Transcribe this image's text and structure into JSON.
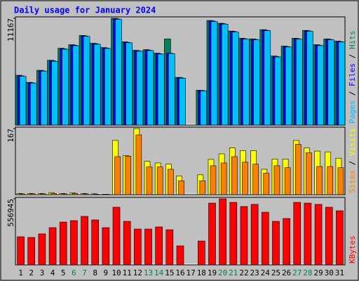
{
  "chart_data": {
    "type": "bar",
    "title": "Daily usage for January 2024",
    "title_color": "#0000ff",
    "categories": [
      "1",
      "2",
      "3",
      "4",
      "5",
      "6",
      "7",
      "8",
      "9",
      "10",
      "11",
      "12",
      "13",
      "14",
      "15",
      "16",
      "17",
      "18",
      "19",
      "20",
      "21",
      "22",
      "23",
      "24",
      "25",
      "26",
      "27",
      "28",
      "29",
      "30",
      "31"
    ],
    "category_colors": [
      "#000000",
      "#000000",
      "#000000",
      "#000000",
      "#000000",
      "#00805c",
      "#00805c",
      "#000000",
      "#000000",
      "#000000",
      "#000000",
      "#000000",
      "#00805c",
      "#00805c",
      "#000000",
      "#000000",
      "#000000",
      "#000000",
      "#000000",
      "#00805c",
      "#00805c",
      "#000000",
      "#000000",
      "#000000",
      "#000000",
      "#000000",
      "#00805c",
      "#00805c",
      "#000000",
      "#000000",
      "#000000"
    ],
    "legend_separator": " / ",
    "panels": [
      {
        "ylim": [
          0,
          11167
        ],
        "yticks": [
          11167
        ],
        "series": [
          {
            "name": "Hits",
            "color": "#00805c",
            "values": [
              5210,
              4470,
              5730,
              6780,
              8040,
              8410,
              9380,
              8560,
              8110,
              11167,
              8710,
              7820,
              7890,
              7520,
              9010,
              4990,
              0,
              3650,
              10940,
              10650,
              9830,
              9080,
              9010,
              9980,
              7220,
              8260,
              9080,
              9900,
              8410,
              9010,
              8780
            ]
          },
          {
            "name": "Files",
            "color": "#0000ff",
            "values": [
              5150,
              4420,
              5680,
              6720,
              7980,
              8350,
              9320,
              8500,
              8060,
              11100,
              8650,
              7770,
              7840,
              7470,
              7520,
              4950,
              0,
              3620,
              10880,
              10600,
              9780,
              9030,
              8960,
              9920,
              7170,
              8210,
              9030,
              9850,
              8360,
              8960,
              8730
            ]
          },
          {
            "name": "Pages",
            "color": "#00c0ff",
            "values": [
              5100,
              4380,
              5630,
              6670,
              7930,
              8300,
              9270,
              8450,
              8010,
              11050,
              8600,
              7720,
              7790,
              7420,
              7470,
              4900,
              0,
              3580,
              10830,
              10550,
              9730,
              8980,
              8910,
              9870,
              7120,
              8160,
              8980,
              9800,
              8310,
              8910,
              8680
            ]
          }
        ]
      },
      {
        "ylim": [
          0,
          167
        ],
        "yticks": [
          167
        ],
        "series": [
          {
            "name": "Visits",
            "color": "#ffff00",
            "values": [
              3,
              3,
              3,
              5,
              3,
              4,
              3,
              2,
              1,
              137,
              99,
              167,
              84,
              80,
              77,
              47,
              0,
              50,
              89,
              103,
              118,
              111,
              111,
              64,
              90,
              90,
              137,
              118,
              110,
              108,
              92
            ]
          },
          {
            "name": "Sites",
            "color": "#ff8000",
            "values": [
              2,
              2,
              2,
              3,
              2,
              3,
              2,
              1,
              1,
              96,
              97,
              151,
              70,
              70,
              64,
              35,
              0,
              35,
              73,
              80,
              96,
              82,
              77,
              54,
              73,
              68,
              127,
              106,
              71,
              71,
              68
            ]
          }
        ]
      },
      {
        "ylim": [
          0,
          556945
        ],
        "yticks": [
          556945
        ],
        "series": [
          {
            "name": "KBytes",
            "color": "#ff0000",
            "values": [
              237000,
              231000,
              261000,
              314000,
              361000,
              373000,
              409000,
              379000,
              314000,
              486000,
              367000,
              302000,
              302000,
              320000,
              296000,
              160000,
              0,
              201000,
              521000,
              556945,
              527000,
              492000,
              510000,
              444000,
              367000,
              391000,
              527000,
              521000,
              510000,
              486000,
              456000
            ]
          }
        ]
      }
    ]
  }
}
